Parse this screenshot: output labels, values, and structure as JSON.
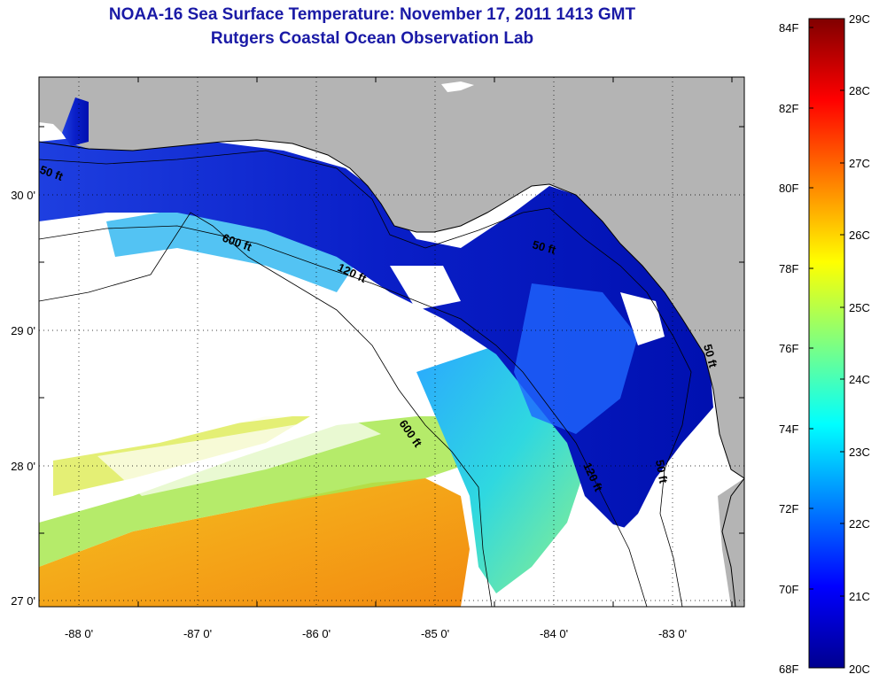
{
  "header": {
    "title": "NOAA-16 Sea Surface Temperature:  November 17, 2011 1413 GMT",
    "subtitle": "Rutgers Coastal Ocean Observation Lab"
  },
  "map": {
    "lon_labels": [
      "-88 0'",
      "-87 0'",
      "-86 0'",
      "-85 0'",
      "-84 0'",
      "-83 0'"
    ],
    "lat_labels": [
      "30 0'",
      "29 0'",
      "28 0'",
      "27 0'"
    ],
    "contour_labels": [
      "50 ft",
      "600 ft",
      "120 ft",
      "50 ft",
      "600 ft",
      "120 ft",
      "50 ft",
      "50 ft"
    ],
    "land_color": "#b4b4b4",
    "missing_data_color": "#ffffff"
  },
  "colorbar": {
    "fahrenheit_labels": [
      "84F",
      "82F",
      "80F",
      "78F",
      "76F",
      "74F",
      "72F",
      "70F",
      "68F"
    ],
    "celsius_labels": [
      "29C",
      "28C",
      "27C",
      "26C",
      "25C",
      "24C",
      "23C",
      "22C",
      "21C",
      "20C"
    ],
    "range_celsius": [
      20,
      29
    ],
    "colormap": "jet"
  }
}
